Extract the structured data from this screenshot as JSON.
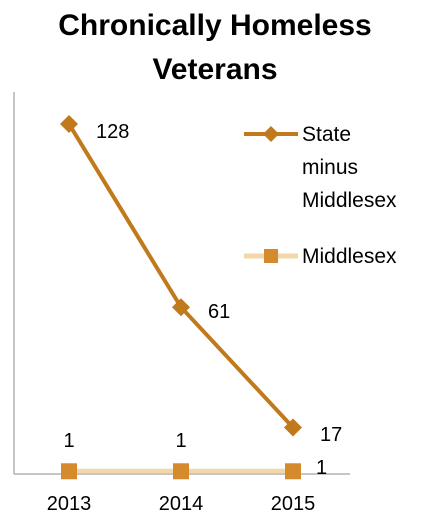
{
  "chart_data": {
    "type": "line",
    "title_lines": [
      "Chronically Homeless",
      "Veterans"
    ],
    "categories": [
      "2013",
      "2014",
      "2015"
    ],
    "series": [
      {
        "name": "State minus Middlesex",
        "legend_lines": [
          "State",
          "minus",
          "Middlesex"
        ],
        "values": [
          128,
          61,
          17
        ],
        "data_labels": [
          "128",
          "61",
          "17"
        ],
        "color": "#C07A1C",
        "marker": "diamond"
      },
      {
        "name": "Middlesex",
        "legend_lines": [
          "Middlesex"
        ],
        "values": [
          1,
          1,
          1
        ],
        "data_labels": [
          "1",
          "1",
          "1"
        ],
        "color": "#F2D7A8",
        "marker_color": "#D58A2E",
        "marker": "square"
      }
    ],
    "ylim": [
      0,
      140
    ],
    "grid": false,
    "legend_position": "right"
  }
}
